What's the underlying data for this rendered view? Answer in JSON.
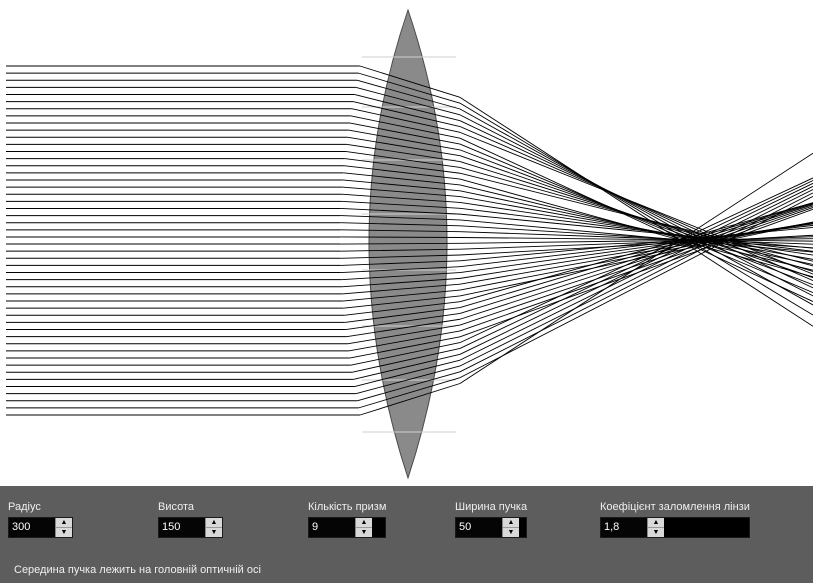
{
  "controls": {
    "radius": {
      "label": "Радіус",
      "value": "300"
    },
    "height": {
      "label": "Висота",
      "value": "150"
    },
    "prisms": {
      "label": "Кількість призм",
      "value": "9"
    },
    "beam_width": {
      "label": "Ширина пучка",
      "value": "50"
    },
    "refraction": {
      "label": "Коефіцієнт заломлення лінзи",
      "value": "1,8"
    }
  },
  "status": "Середина пучка лежить на головній оптичній осі",
  "colors": {
    "background": "#ffffff",
    "lens": "#8a8a8a",
    "panel": "#5d5d5d",
    "ray": "#000000"
  },
  "icons": {
    "spin_up": "▲",
    "spin_down": "▼"
  }
}
